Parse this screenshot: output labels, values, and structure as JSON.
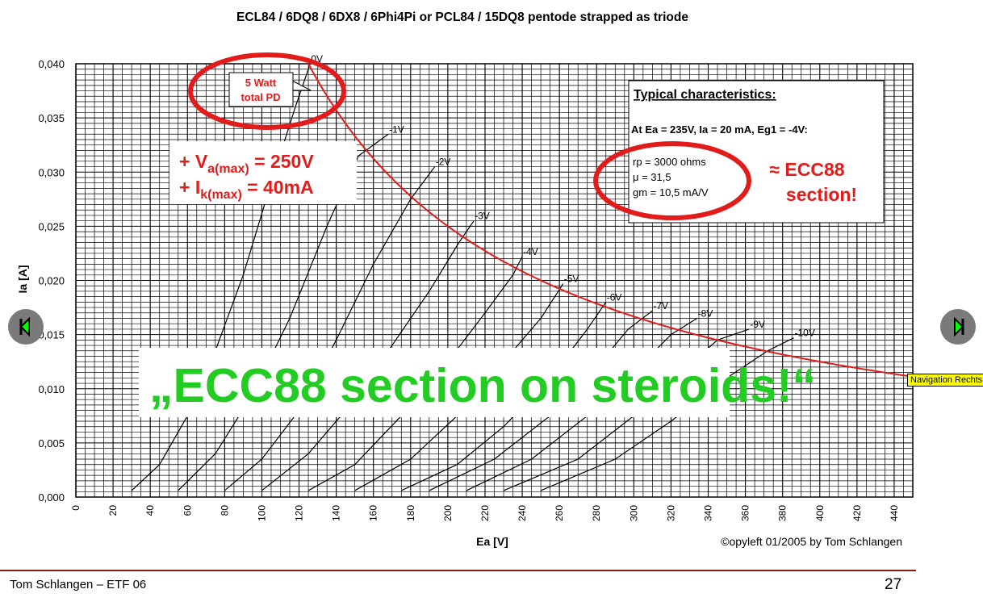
{
  "slide": {
    "footer_left": "Tom Schlangen – ETF 06",
    "page_number": "27"
  },
  "nav": {
    "tooltip": "Navigation Rechts"
  },
  "colors": {
    "annotation_red": "#e21b1b",
    "banner_green": "#22cc22",
    "curve_red": "#e21b1b",
    "footer_rule": "#8b1a1a"
  },
  "annotations": {
    "pd_box": [
      "5 Watt",
      "total PD"
    ],
    "vmax_line": [
      "+ V",
      "a(max)",
      " = 250V"
    ],
    "imax_line": [
      "+ I",
      "k(max)",
      " = 40mA"
    ],
    "typical_title": "Typical characteristics:",
    "typical_cond": "At Ea = 235V, Ia = 20 mA, Eg1 = -4V:",
    "typical_values": [
      "rp  = 3000 ohms",
      "μ   = 31,5",
      "gm = 10,5 mA/V"
    ],
    "ecc88_note": [
      "≈ ECC88",
      "section!"
    ],
    "banner": "„ECC88 section on steroids!“"
  },
  "chart_data": {
    "type": "line",
    "title": "ECL84 / 6DQ8 / 6DX8 / 6Phi4Pi or PCL84 / 15DQ8 pentode strapped as triode",
    "xlabel": "Ea [V]",
    "ylabel": "Ia [A]",
    "xlim": [
      0,
      450
    ],
    "ylim": [
      0,
      0.04
    ],
    "x_ticks": [
      "0",
      "20",
      "40",
      "60",
      "80",
      "100",
      "120",
      "140",
      "160",
      "180",
      "200",
      "220",
      "240",
      "260",
      "280",
      "300",
      "320",
      "340",
      "360",
      "380",
      "400",
      "420",
      "440"
    ],
    "y_ticks": [
      "0,000",
      "0,005",
      "0,010",
      "0,015",
      "0,020",
      "0,025",
      "0,030",
      "0,035",
      "0,040"
    ],
    "grid": true,
    "copyright": "©opyleft 01/2005 by Tom Schlangen",
    "series": [
      {
        "name": "0V",
        "points": [
          [
            30,
            0.0006
          ],
          [
            45,
            0.003
          ],
          [
            60,
            0.0075
          ],
          [
            75,
            0.0135
          ],
          [
            90,
            0.0205
          ],
          [
            105,
            0.029
          ],
          [
            118,
            0.036
          ],
          [
            126,
            0.04
          ]
        ]
      },
      {
        "name": "-1V",
        "points": [
          [
            55,
            0.0006
          ],
          [
            75,
            0.004
          ],
          [
            95,
            0.0095
          ],
          [
            115,
            0.0165
          ],
          [
            135,
            0.025
          ],
          [
            152,
            0.0315
          ],
          [
            168,
            0.0335
          ]
        ]
      },
      {
        "name": "-2V",
        "points": [
          [
            80,
            0.0006
          ],
          [
            100,
            0.0035
          ],
          [
            120,
            0.008
          ],
          [
            140,
            0.0145
          ],
          [
            160,
            0.0215
          ],
          [
            180,
            0.0275
          ],
          [
            193,
            0.0305
          ]
        ]
      },
      {
        "name": "-3V",
        "points": [
          [
            100,
            0.0006
          ],
          [
            125,
            0.004
          ],
          [
            150,
            0.009
          ],
          [
            170,
            0.014
          ],
          [
            190,
            0.019
          ],
          [
            206,
            0.0235
          ],
          [
            214,
            0.0255
          ]
        ]
      },
      {
        "name": "-4V",
        "points": [
          [
            125,
            0.0006
          ],
          [
            150,
            0.003
          ],
          [
            175,
            0.0075
          ],
          [
            200,
            0.0125
          ],
          [
            220,
            0.017
          ],
          [
            235,
            0.0205
          ],
          [
            240,
            0.0222
          ]
        ]
      },
      {
        "name": "-5V",
        "points": [
          [
            150,
            0.0006
          ],
          [
            180,
            0.0035
          ],
          [
            205,
            0.0075
          ],
          [
            230,
            0.0125
          ],
          [
            250,
            0.0165
          ],
          [
            262,
            0.0197
          ]
        ]
      },
      {
        "name": "-6V",
        "points": [
          [
            175,
            0.0006
          ],
          [
            205,
            0.003
          ],
          [
            230,
            0.0065
          ],
          [
            255,
            0.011
          ],
          [
            275,
            0.0155
          ],
          [
            285,
            0.018
          ]
        ]
      },
      {
        "name": "-7V",
        "points": [
          [
            190,
            0.0006
          ],
          [
            225,
            0.0035
          ],
          [
            255,
            0.0075
          ],
          [
            280,
            0.012
          ],
          [
            297,
            0.0155
          ],
          [
            310,
            0.0172
          ]
        ]
      },
      {
        "name": "-8V",
        "points": [
          [
            210,
            0.0006
          ],
          [
            245,
            0.0035
          ],
          [
            275,
            0.0075
          ],
          [
            300,
            0.0115
          ],
          [
            320,
            0.015
          ],
          [
            334,
            0.0165
          ]
        ]
      },
      {
        "name": "-9V",
        "points": [
          [
            230,
            0.0006
          ],
          [
            270,
            0.0035
          ],
          [
            300,
            0.0075
          ],
          [
            325,
            0.0115
          ],
          [
            345,
            0.0145
          ],
          [
            362,
            0.0155
          ]
        ]
      },
      {
        "name": "-10V",
        "points": [
          [
            250,
            0.0006
          ],
          [
            290,
            0.0035
          ],
          [
            320,
            0.007
          ],
          [
            350,
            0.011
          ],
          [
            372,
            0.0135
          ],
          [
            386,
            0.0147
          ]
        ]
      }
    ],
    "pd_curve": {
      "name": "5 Watt total PD",
      "x_from": 125,
      "x_to": 450,
      "watts": 5
    }
  }
}
